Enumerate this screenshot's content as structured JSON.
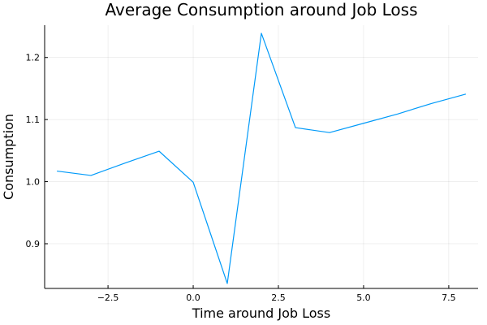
{
  "chart_data": {
    "type": "line",
    "title": "Average Consumption around Job Loss",
    "xlabel": "Time around Job Loss",
    "ylabel": "Consumption",
    "xlim": [
      -4.36,
      8.36
    ],
    "ylim": [
      0.828,
      1.252
    ],
    "xticks": [
      -2.5,
      0.0,
      2.5,
      5.0,
      7.5
    ],
    "xtick_labels": [
      "−2.5",
      "0.0",
      "2.5",
      "5.0",
      "7.5"
    ],
    "yticks": [
      0.9,
      1.0,
      1.1,
      1.2
    ],
    "ytick_labels": [
      "0.9",
      "1.0",
      "1.1",
      "1.2"
    ],
    "grid": true,
    "legend": "none",
    "series": [
      {
        "color": "#009af9",
        "x": [
          -4,
          -3,
          -2,
          -1,
          0,
          1,
          2,
          3,
          4,
          5,
          6,
          7,
          8
        ],
        "y": [
          1.017,
          1.01,
          1.03,
          1.049,
          0.999,
          0.836,
          1.239,
          1.087,
          1.079,
          1.094,
          1.109,
          1.126,
          1.141
        ]
      }
    ]
  }
}
